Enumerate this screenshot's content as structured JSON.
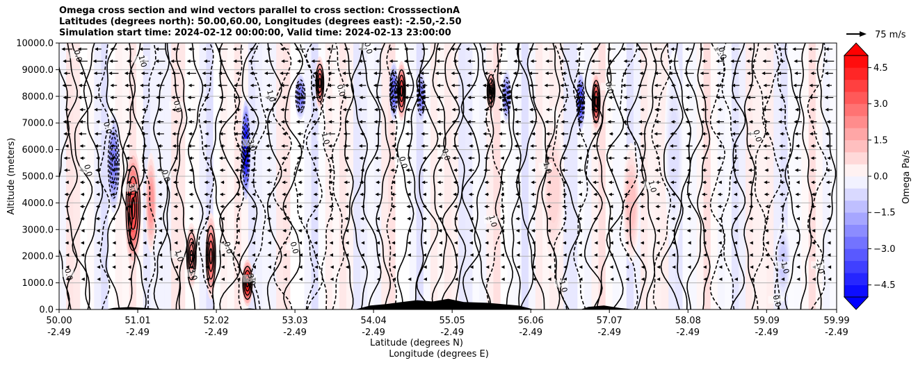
{
  "chart_data": {
    "type": "heatmap",
    "title_lines": [
      "Omega cross section and wind vectors parallel to cross section: CrosssectionA",
      "Latitudes (degrees north): 50.00,60.00, Longitudes (degrees east): -2.50,-2.50",
      "Simulation start time: 2024-02-12 00:00:00, Valid time: 2024-02-13 23:00:00"
    ],
    "ylabel": "Altitude (meters)",
    "xlabel_lat": "Latitude (degrees N)",
    "xlabel_lon": "Longitude (degrees E)",
    "ylim": [
      0,
      10000
    ],
    "xlim": [
      50.0,
      59.99
    ],
    "y_ticks": [
      {
        "value": 0,
        "label": "0.0"
      },
      {
        "value": 1000,
        "label": "1000.0"
      },
      {
        "value": 2000,
        "label": "2000.0"
      },
      {
        "value": 3000,
        "label": "3000.0"
      },
      {
        "value": 4000,
        "label": "4000.0"
      },
      {
        "value": 5000,
        "label": "5000.0"
      },
      {
        "value": 6000,
        "label": "6000.0"
      },
      {
        "value": 7000,
        "label": "7000.0"
      },
      {
        "value": 8000,
        "label": "8000.0"
      },
      {
        "value": 9000,
        "label": "9000.0"
      },
      {
        "value": 10000,
        "label": "10000.0"
      }
    ],
    "x_ticks": [
      {
        "lat": 50.0,
        "lat_label": "50.00",
        "lon_label": "-2.49"
      },
      {
        "lat": 51.01,
        "lat_label": "51.01",
        "lon_label": "-2.49"
      },
      {
        "lat": 52.02,
        "lat_label": "52.02",
        "lon_label": "-2.49"
      },
      {
        "lat": 53.03,
        "lat_label": "53.03",
        "lon_label": "-2.49"
      },
      {
        "lat": 54.04,
        "lat_label": "54.04",
        "lon_label": "-2.49"
      },
      {
        "lat": 55.05,
        "lat_label": "55.05",
        "lon_label": "-2.49"
      },
      {
        "lat": 56.06,
        "lat_label": "56.06",
        "lon_label": "-2.49"
      },
      {
        "lat": 57.07,
        "lat_label": "57.07",
        "lon_label": "-2.49"
      },
      {
        "lat": 58.08,
        "lat_label": "58.08",
        "lon_label": "-2.49"
      },
      {
        "lat": 59.09,
        "lat_label": "59.09",
        "lon_label": "-2.49"
      },
      {
        "lat": 59.99,
        "lat_label": "59.99",
        "lon_label": "-2.49"
      }
    ],
    "colorbar": {
      "label": "Omega Pa/s",
      "range": [
        -5,
        5
      ],
      "levels_step": 0.5,
      "ticks": [
        {
          "value": 4.5,
          "label": "4.5"
        },
        {
          "value": 3.0,
          "label": "3.0"
        },
        {
          "value": 1.5,
          "label": "1.5"
        },
        {
          "value": 0.0,
          "label": "0.0"
        },
        {
          "value": -1.5,
          "label": "−1.5"
        },
        {
          "value": -3.0,
          "label": "−3.0"
        },
        {
          "value": -4.5,
          "label": "−4.5"
        }
      ],
      "pos_color": "#ff0000",
      "neg_color": "#0000ff"
    },
    "quiver_key": {
      "label": "75 m/s",
      "speed": 75
    },
    "omega_bands": [
      {
        "lat": 50.95,
        "halfwidth": 0.09,
        "center_alt": 3800,
        "spread_alt": 1800,
        "value": 3.5
      },
      {
        "lat": 51.18,
        "halfwidth": 0.06,
        "center_alt": 4000,
        "spread_alt": 1500,
        "value": 2.0
      },
      {
        "lat": 50.7,
        "halfwidth": 0.07,
        "center_alt": 5500,
        "spread_alt": 1500,
        "value": -2.5
      },
      {
        "lat": 51.7,
        "halfwidth": 0.06,
        "center_alt": 2000,
        "spread_alt": 1000,
        "value": 2.5
      },
      {
        "lat": 51.95,
        "halfwidth": 0.06,
        "center_alt": 2000,
        "spread_alt": 1300,
        "value": 3.0
      },
      {
        "lat": 52.4,
        "halfwidth": 0.05,
        "center_alt": 6000,
        "spread_alt": 1500,
        "value": -4.5
      },
      {
        "lat": 52.42,
        "halfwidth": 0.06,
        "center_alt": 1000,
        "spread_alt": 700,
        "value": 4.5
      },
      {
        "lat": 53.1,
        "halfwidth": 0.06,
        "center_alt": 8000,
        "spread_alt": 700,
        "value": -2.5
      },
      {
        "lat": 53.35,
        "halfwidth": 0.05,
        "center_alt": 8500,
        "spread_alt": 800,
        "value": 3.0
      },
      {
        "lat": 54.3,
        "halfwidth": 0.05,
        "center_alt": 8200,
        "spread_alt": 900,
        "value": -3.0
      },
      {
        "lat": 54.4,
        "halfwidth": 0.05,
        "center_alt": 8200,
        "spread_alt": 900,
        "value": 3.5
      },
      {
        "lat": 54.65,
        "halfwidth": 0.05,
        "center_alt": 8000,
        "spread_alt": 800,
        "value": -2.5
      },
      {
        "lat": 55.55,
        "halfwidth": 0.05,
        "center_alt": 8200,
        "spread_alt": 700,
        "value": 2.5
      },
      {
        "lat": 55.75,
        "halfwidth": 0.05,
        "center_alt": 8000,
        "spread_alt": 800,
        "value": -2.5
      },
      {
        "lat": 56.7,
        "halfwidth": 0.05,
        "center_alt": 7800,
        "spread_alt": 900,
        "value": -3.5
      },
      {
        "lat": 56.9,
        "halfwidth": 0.05,
        "center_alt": 7800,
        "spread_alt": 900,
        "value": 3.5
      },
      {
        "lat": 57.35,
        "halfwidth": 0.09,
        "center_alt": 4000,
        "spread_alt": 1800,
        "value": 1.2
      },
      {
        "lat": 56.35,
        "halfwidth": 0.12,
        "center_alt": 4500,
        "spread_alt": 2500,
        "value": 0.8
      },
      {
        "lat": 59.3,
        "halfwidth": 0.08,
        "center_alt": 1800,
        "spread_alt": 1200,
        "value": -1.0
      },
      {
        "lat": 57.9,
        "halfwidth": 0.1,
        "center_alt": 6000,
        "spread_alt": 3000,
        "value": -0.6
      }
    ],
    "contour_labels": [
      {
        "lat": 50.22,
        "alt": 9500,
        "text": "0.0"
      },
      {
        "lat": 50.35,
        "alt": 5200,
        "text": "0.0"
      },
      {
        "lat": 50.6,
        "alt": 6800,
        "text": "0.0"
      },
      {
        "lat": 50.1,
        "alt": 1300,
        "text": "0.0"
      },
      {
        "lat": 50.92,
        "alt": 4500,
        "text": "3.0"
      },
      {
        "lat": 51.05,
        "alt": 9300,
        "text": "1.0"
      },
      {
        "lat": 51.35,
        "alt": 5000,
        "text": "0.0"
      },
      {
        "lat": 51.52,
        "alt": 2000,
        "text": "1.0"
      },
      {
        "lat": 51.5,
        "alt": 7600,
        "text": "0.0"
      },
      {
        "lat": 51.7,
        "alt": 1300,
        "text": "3.0"
      },
      {
        "lat": 52.15,
        "alt": 2300,
        "text": "0.0"
      },
      {
        "lat": 52.45,
        "alt": 6200,
        "text": "-3.0"
      },
      {
        "lat": 52.45,
        "alt": 1100,
        "text": "3.0"
      },
      {
        "lat": 52.7,
        "alt": 8000,
        "text": "1.0"
      },
      {
        "lat": 53.0,
        "alt": 2300,
        "text": "0.0"
      },
      {
        "lat": 53.4,
        "alt": 6400,
        "text": "1.0"
      },
      {
        "lat": 53.6,
        "alt": 8200,
        "text": "0.0"
      },
      {
        "lat": 53.95,
        "alt": 9800,
        "text": "0.0"
      },
      {
        "lat": 54.4,
        "alt": 5500,
        "text": "0.0"
      },
      {
        "lat": 54.95,
        "alt": 5800,
        "text": "0.0"
      },
      {
        "lat": 55.55,
        "alt": 3300,
        "text": "1.0"
      },
      {
        "lat": 56.25,
        "alt": 5300,
        "text": "1.0"
      },
      {
        "lat": 56.45,
        "alt": 900,
        "text": "-1.0"
      },
      {
        "lat": 57.05,
        "alt": 8300,
        "text": "0.0"
      },
      {
        "lat": 57.6,
        "alt": 4600,
        "text": "1.0"
      },
      {
        "lat": 58.5,
        "alt": 9600,
        "text": "0.0"
      },
      {
        "lat": 58.95,
        "alt": 6500,
        "text": "0.0"
      },
      {
        "lat": 59.3,
        "alt": 1600,
        "text": "-1.0"
      },
      {
        "lat": 59.75,
        "alt": 1600,
        "text": "-1.0"
      },
      {
        "lat": 59.2,
        "alt": 300,
        "text": "0.0"
      }
    ]
  }
}
